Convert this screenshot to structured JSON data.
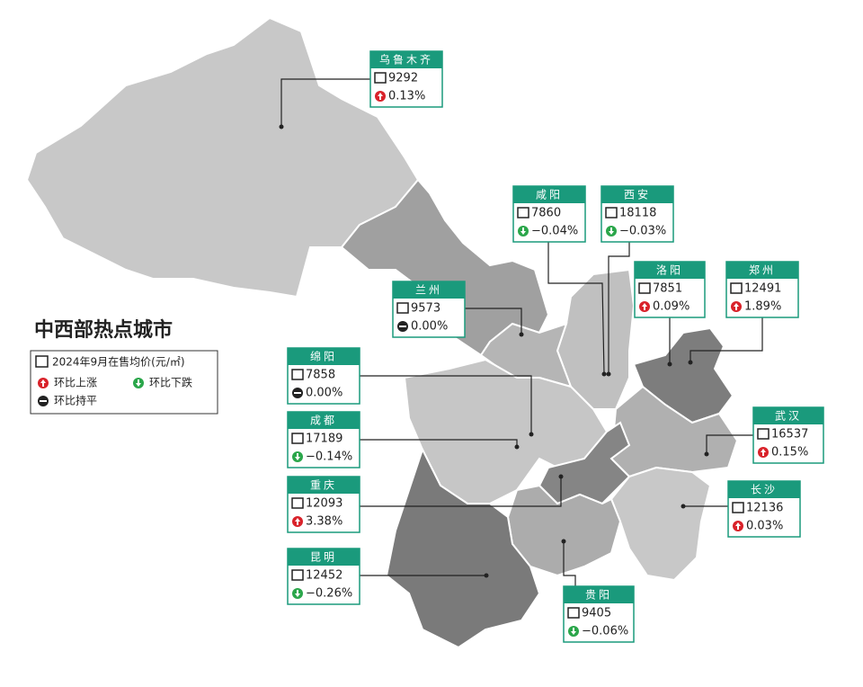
{
  "title": "中西部热点城市",
  "legend": {
    "price": "2024年9月在售均价(元/㎡)",
    "up": "环比上涨",
    "down": "环比下跌",
    "flat": "环比持平"
  },
  "cities": [
    {
      "name": "乌鲁木齐",
      "price": "9292",
      "change": "0.13%",
      "trend": "up"
    },
    {
      "name": "咸阳",
      "price": "7860",
      "change": "−0.04%",
      "trend": "down"
    },
    {
      "name": "西安",
      "price": "18118",
      "change": "−0.03%",
      "trend": "down"
    },
    {
      "name": "洛阳",
      "price": "7851",
      "change": "0.09%",
      "trend": "up"
    },
    {
      "name": "郑州",
      "price": "12491",
      "change": "1.89%",
      "trend": "up"
    },
    {
      "name": "兰州",
      "price": "9573",
      "change": "0.00%",
      "trend": "flat"
    },
    {
      "name": "绵阳",
      "price": "7858",
      "change": "0.00%",
      "trend": "flat"
    },
    {
      "name": "成都",
      "price": "17189",
      "change": "−0.14%",
      "trend": "down"
    },
    {
      "name": "重庆",
      "price": "12093",
      "change": "3.38%",
      "trend": "up"
    },
    {
      "name": "昆明",
      "price": "12452",
      "change": "−0.26%",
      "trend": "down"
    },
    {
      "name": "贵阳",
      "price": "9405",
      "change": "−0.06%",
      "trend": "down"
    },
    {
      "name": "武汉",
      "price": "16537",
      "change": "0.15%",
      "trend": "up"
    },
    {
      "name": "长沙",
      "price": "12136",
      "change": "0.03%",
      "trend": "up"
    }
  ]
}
